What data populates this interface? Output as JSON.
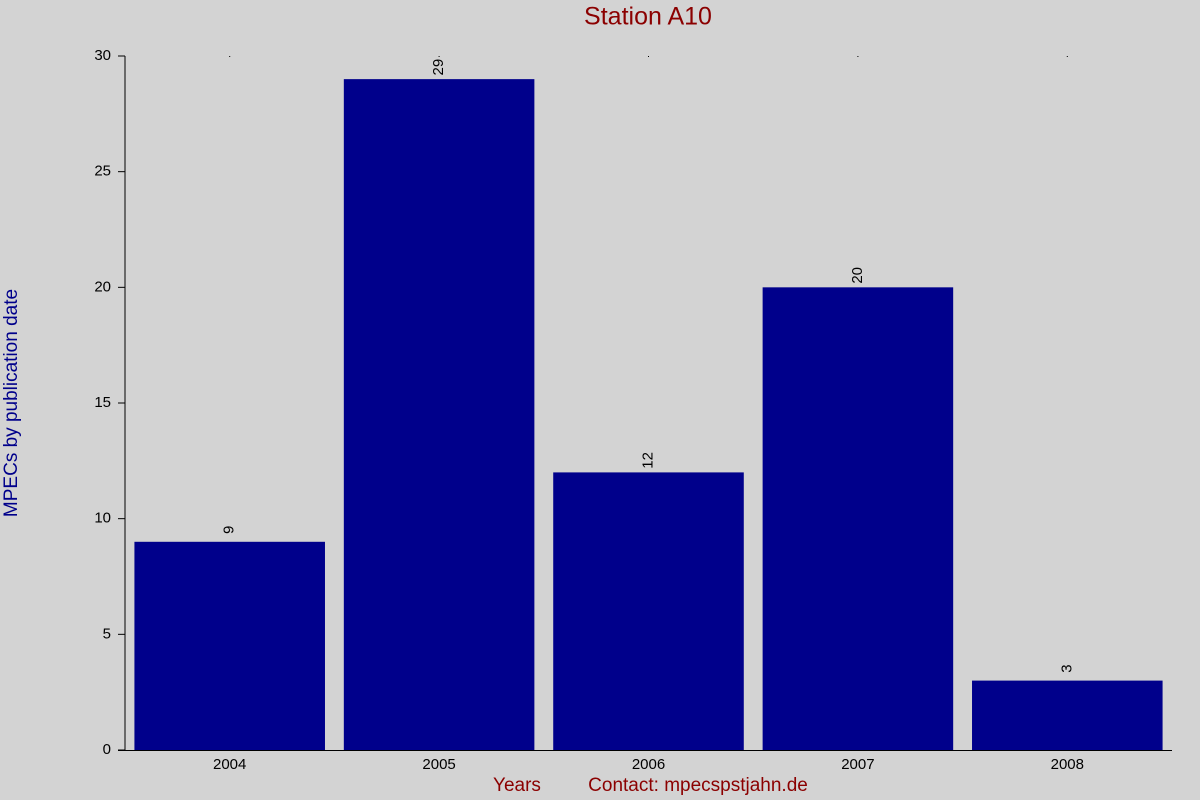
{
  "chart_data": {
    "type": "bar",
    "title": "Station A10",
    "y_label": "MPECs by publication date",
    "x_label": "Years",
    "annotation": "Contact: mpecspstjahn.de",
    "categories": [
      "2004",
      "2005",
      "2006",
      "2007",
      "2008"
    ],
    "values": [
      9,
      29,
      12,
      20,
      3
    ],
    "color": "#00008b",
    "ylim": [
      0,
      30
    ],
    "yticks": [
      0,
      5,
      10,
      15,
      20,
      25,
      30
    ],
    "grid": false
  }
}
